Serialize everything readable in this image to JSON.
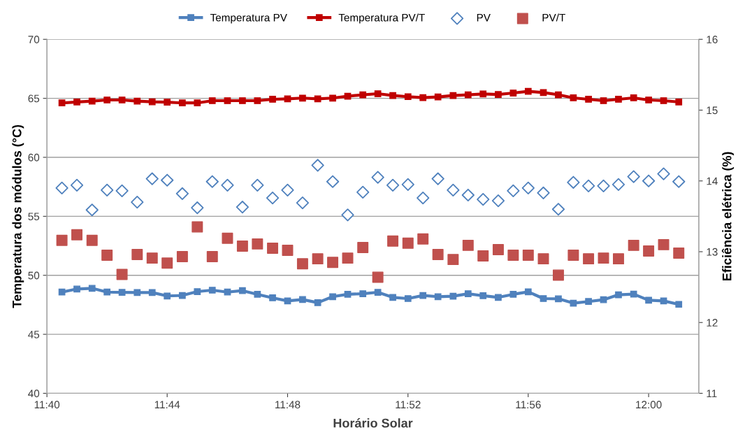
{
  "chart_data": {
    "type": "line",
    "xlabel": "Horário Solar",
    "ylabel": "Temperatura dos módulos (°C)",
    "y2label": "Eficiência elétrica (%)",
    "x": [
      11.675,
      11.6833,
      11.6917,
      11.7,
      11.7083,
      11.7167,
      11.725,
      11.7333,
      11.7417,
      11.75,
      11.7583,
      11.7667,
      11.775,
      11.7833,
      11.7917,
      11.8,
      11.8083,
      11.8167,
      11.825,
      11.8333,
      11.8417,
      11.85,
      11.8583,
      11.8667,
      11.875,
      11.8833,
      11.8917,
      11.9,
      11.9083,
      11.9167,
      11.925,
      11.9333,
      11.9417,
      11.95,
      11.9583,
      11.9667,
      11.975,
      11.9833,
      11.9917,
      12.0,
      12.0083,
      12.0167
    ],
    "series": [
      {
        "name": "Temperatura PV",
        "color": "#4f81bd",
        "marker": "square",
        "values": [
          48.58,
          48.84,
          48.9,
          48.58,
          48.56,
          48.54,
          48.54,
          48.25,
          48.29,
          48.62,
          48.74,
          48.58,
          48.7,
          48.39,
          48.09,
          47.83,
          47.95,
          47.68,
          48.19,
          48.39,
          48.44,
          48.56,
          48.13,
          48.03,
          48.29,
          48.19,
          48.23,
          48.44,
          48.27,
          48.13,
          48.39,
          48.6,
          48.03,
          48.01,
          47.64,
          47.78,
          47.93,
          48.35,
          48.41,
          47.89,
          47.83,
          47.54
        ]
      },
      {
        "name": "Temperatura PV/T",
        "color": "#c00000",
        "marker": "square",
        "values": [
          64.61,
          64.69,
          64.76,
          64.86,
          64.86,
          64.76,
          64.7,
          64.67,
          64.61,
          64.61,
          64.8,
          64.8,
          64.8,
          64.8,
          64.92,
          64.96,
          65.02,
          64.96,
          65.02,
          65.18,
          65.3,
          65.39,
          65.24,
          65.14,
          65.06,
          65.12,
          65.24,
          65.3,
          65.37,
          65.33,
          65.45,
          65.59,
          65.49,
          65.3,
          65.04,
          64.92,
          64.8,
          64.92,
          65.04,
          64.86,
          64.8,
          64.69
        ]
      },
      {
        "name": "PV",
        "type": "scatter",
        "axis": "y2",
        "color": "#4f81bd",
        "marker": "diamond",
        "values": [
          13.9,
          13.94,
          13.59,
          13.87,
          13.86,
          13.7,
          14.03,
          14.01,
          13.82,
          13.62,
          13.99,
          13.94,
          13.63,
          13.94,
          13.76,
          13.87,
          13.69,
          14.22,
          13.99,
          13.52,
          13.84,
          14.05,
          13.94,
          13.95,
          13.76,
          14.03,
          13.87,
          13.8,
          13.74,
          13.72,
          13.86,
          13.9,
          13.83,
          13.6,
          13.98,
          13.93,
          13.93,
          13.95,
          14.06,
          14.0,
          14.1,
          13.99
        ]
      },
      {
        "name": "PV/T",
        "type": "scatter",
        "axis": "y2",
        "color": "#c0504d",
        "marker": "square",
        "values": [
          13.16,
          13.24,
          13.16,
          12.95,
          12.68,
          12.96,
          12.91,
          12.84,
          12.93,
          13.35,
          12.93,
          13.19,
          13.08,
          13.11,
          13.05,
          13.02,
          12.83,
          12.9,
          12.85,
          12.91,
          13.06,
          12.64,
          13.15,
          13.12,
          13.18,
          12.96,
          12.89,
          13.09,
          12.94,
          13.03,
          12.95,
          12.95,
          12.9,
          12.67,
          12.95,
          12.9,
          12.91,
          12.9,
          13.09,
          13.01,
          13.1,
          12.98
        ]
      }
    ],
    "xlim": [
      11.6667,
      12.0278
    ],
    "xticks": [
      {
        "value": 11.6667,
        "label": "11:40"
      },
      {
        "value": 11.7333,
        "label": "11:44"
      },
      {
        "value": 11.8,
        "label": "11:48"
      },
      {
        "value": 11.8667,
        "label": "11:52"
      },
      {
        "value": 11.9333,
        "label": "11:56"
      },
      {
        "value": 12.0,
        "label": "12:00"
      }
    ],
    "ylim": [
      40,
      70
    ],
    "yticks": [
      40,
      45,
      50,
      55,
      60,
      65,
      70
    ],
    "y2lim": [
      11,
      16
    ],
    "y2ticks": [
      11,
      12,
      13,
      14,
      15,
      16
    ],
    "grid": "y",
    "legend": "top"
  }
}
